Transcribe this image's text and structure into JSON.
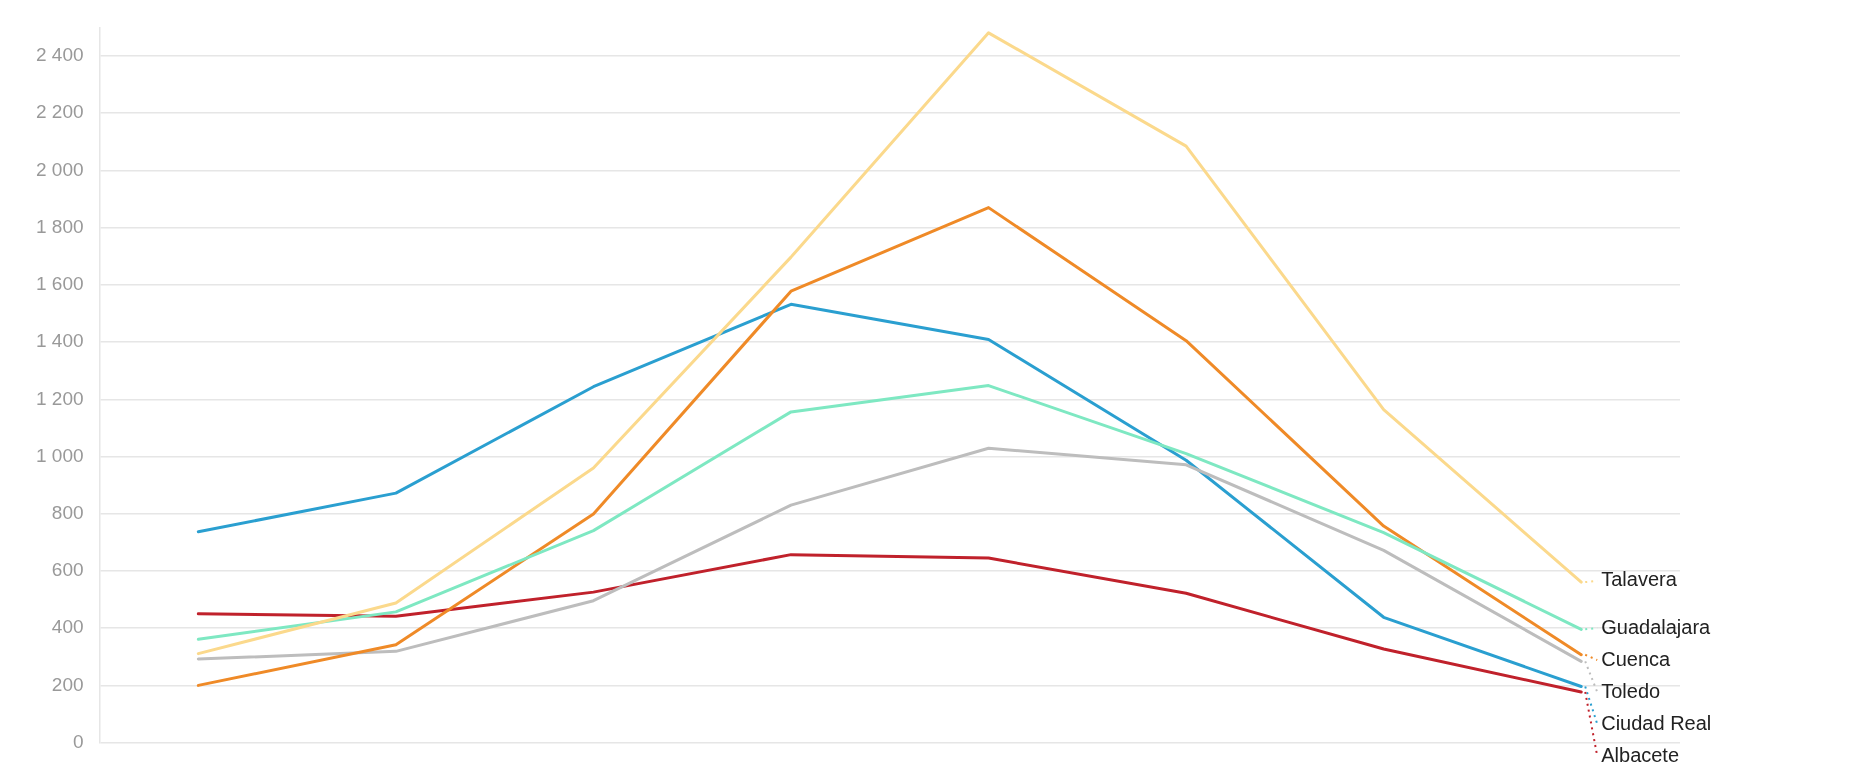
{
  "chart_data": {
    "type": "line",
    "categories": [
      null,
      null,
      null,
      null,
      null,
      null,
      null,
      null
    ],
    "ylim": [
      0,
      2500
    ],
    "yticks": [
      {
        "value": 0,
        "label": "0"
      },
      {
        "value": 200,
        "label": "200"
      },
      {
        "value": 400,
        "label": "400"
      },
      {
        "value": 600,
        "label": "600"
      },
      {
        "value": 800,
        "label": "800"
      },
      {
        "value": 1000,
        "label": "1 000"
      },
      {
        "value": 1200,
        "label": "1 200"
      },
      {
        "value": 1400,
        "label": "1 400"
      },
      {
        "value": 1600,
        "label": "1 600"
      },
      {
        "value": 1800,
        "label": "1 800"
      },
      {
        "value": 2000,
        "label": "2 000"
      },
      {
        "value": 2200,
        "label": "2 200"
      },
      {
        "value": 2400,
        "label": "2 400"
      }
    ],
    "grid": "y",
    "legend": "right",
    "marker": "none",
    "line_style": "solid",
    "tick_labels": "y",
    "series": [
      {
        "name": "Talavera",
        "color": "#fbd98c",
        "values": [
          311,
          488,
          960,
          1697,
          2481,
          2085,
          1164,
          561
        ]
      },
      {
        "name": "Guadalajara",
        "color": "#7ee8c2",
        "values": [
          361,
          457,
          741,
          1156,
          1248,
          1010,
          734,
          396
        ]
      },
      {
        "name": "Cuenca",
        "color": "#ef8a27",
        "values": [
          200,
          342,
          799,
          1578,
          1870,
          1405,
          757,
          307
        ]
      },
      {
        "name": "Toledo",
        "color": "#bdbdbd",
        "values": [
          292,
          319,
          496,
          830,
          1029,
          971,
          672,
          284
        ]
      },
      {
        "name": "Ciudad Real",
        "color": "#2a9fd0",
        "values": [
          737,
          872,
          1244,
          1532,
          1409,
          987,
          438,
          196
        ]
      },
      {
        "name": "Albacete",
        "color": "#c0212b",
        "values": [
          450,
          442,
          526,
          657,
          645,
          522,
          327,
          177
        ]
      }
    ]
  }
}
